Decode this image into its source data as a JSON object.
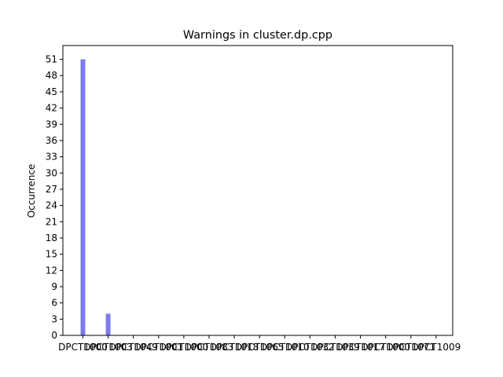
{
  "chart_data": {
    "type": "bar",
    "title": "Warnings in cluster.dp.cpp",
    "xlabel": "",
    "ylabel": "Occurrence",
    "categories": [
      "DPCT1000",
      "DPCT1003",
      "DPCT1049",
      "DPCT1001",
      "DPCT1000",
      "DPCT1083",
      "DPCT1018",
      "DPCT1065",
      "DPCT1010",
      "DPCT1032",
      "DPCT1039",
      "DPCT1017",
      "DPCT1000",
      "DPCT1071",
      "DPCT1009"
    ],
    "values": [
      51,
      4,
      0,
      0,
      0,
      0,
      0,
      0,
      0,
      0,
      0,
      0,
      0,
      0,
      0
    ],
    "ylim": [
      0,
      53.55
    ],
    "yticks": [
      0,
      3,
      6,
      9,
      12,
      15,
      18,
      21,
      24,
      27,
      30,
      33,
      36,
      39,
      42,
      45,
      48,
      51
    ],
    "bar_color": "#7b7bed",
    "grid": false,
    "legend": "none"
  }
}
